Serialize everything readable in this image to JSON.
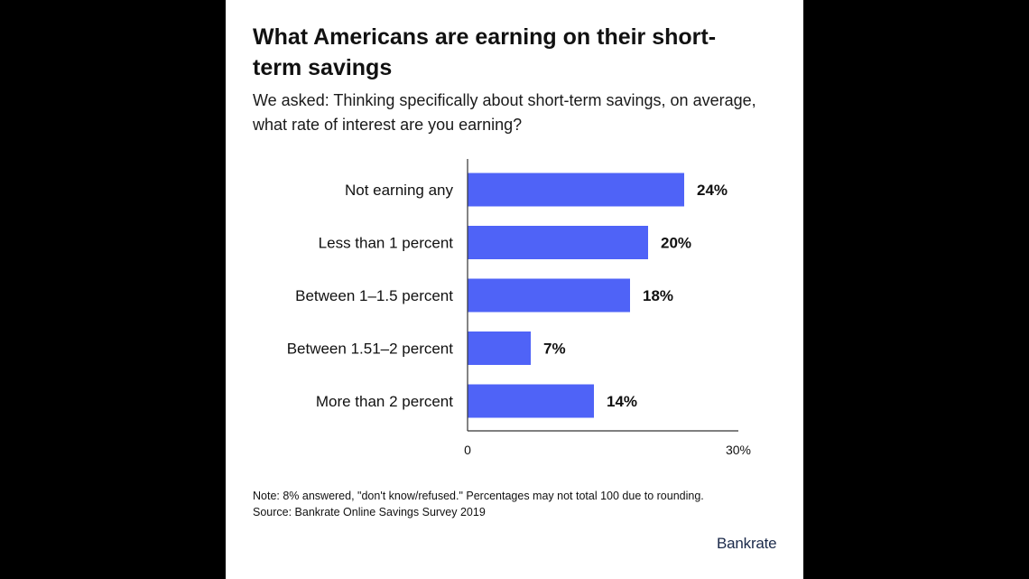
{
  "brand": "Bankrate",
  "colors": {
    "bar": "#4f63f7",
    "axis": "#333333",
    "text": "#111111",
    "brand": "#1b2a4a"
  },
  "notes": {
    "note": "Note: 8% answered, \"don't know/refused.\" Percentages may not total 100 due to rounding.",
    "source": "Source: Bankrate Online Savings Survey 2019"
  },
  "chart_data": {
    "type": "bar",
    "orientation": "horizontal",
    "title": "What Americans are earning on their short-term savings",
    "subtitle": "We asked: Thinking specifically about short-term savings, on average, what rate of interest are you earning?",
    "categories": [
      "Not earning any",
      "Less than 1 percent",
      "Between 1–1.5 percent",
      "Between 1.51–2 percent",
      "More than 2 percent"
    ],
    "values": [
      24,
      20,
      18,
      7,
      14
    ],
    "value_labels": [
      "24%",
      "20%",
      "18%",
      "7%",
      "14%"
    ],
    "xlim": [
      0,
      30
    ],
    "x_tick_labels": [
      "0",
      "30%"
    ],
    "grid": false,
    "legend": "none"
  }
}
